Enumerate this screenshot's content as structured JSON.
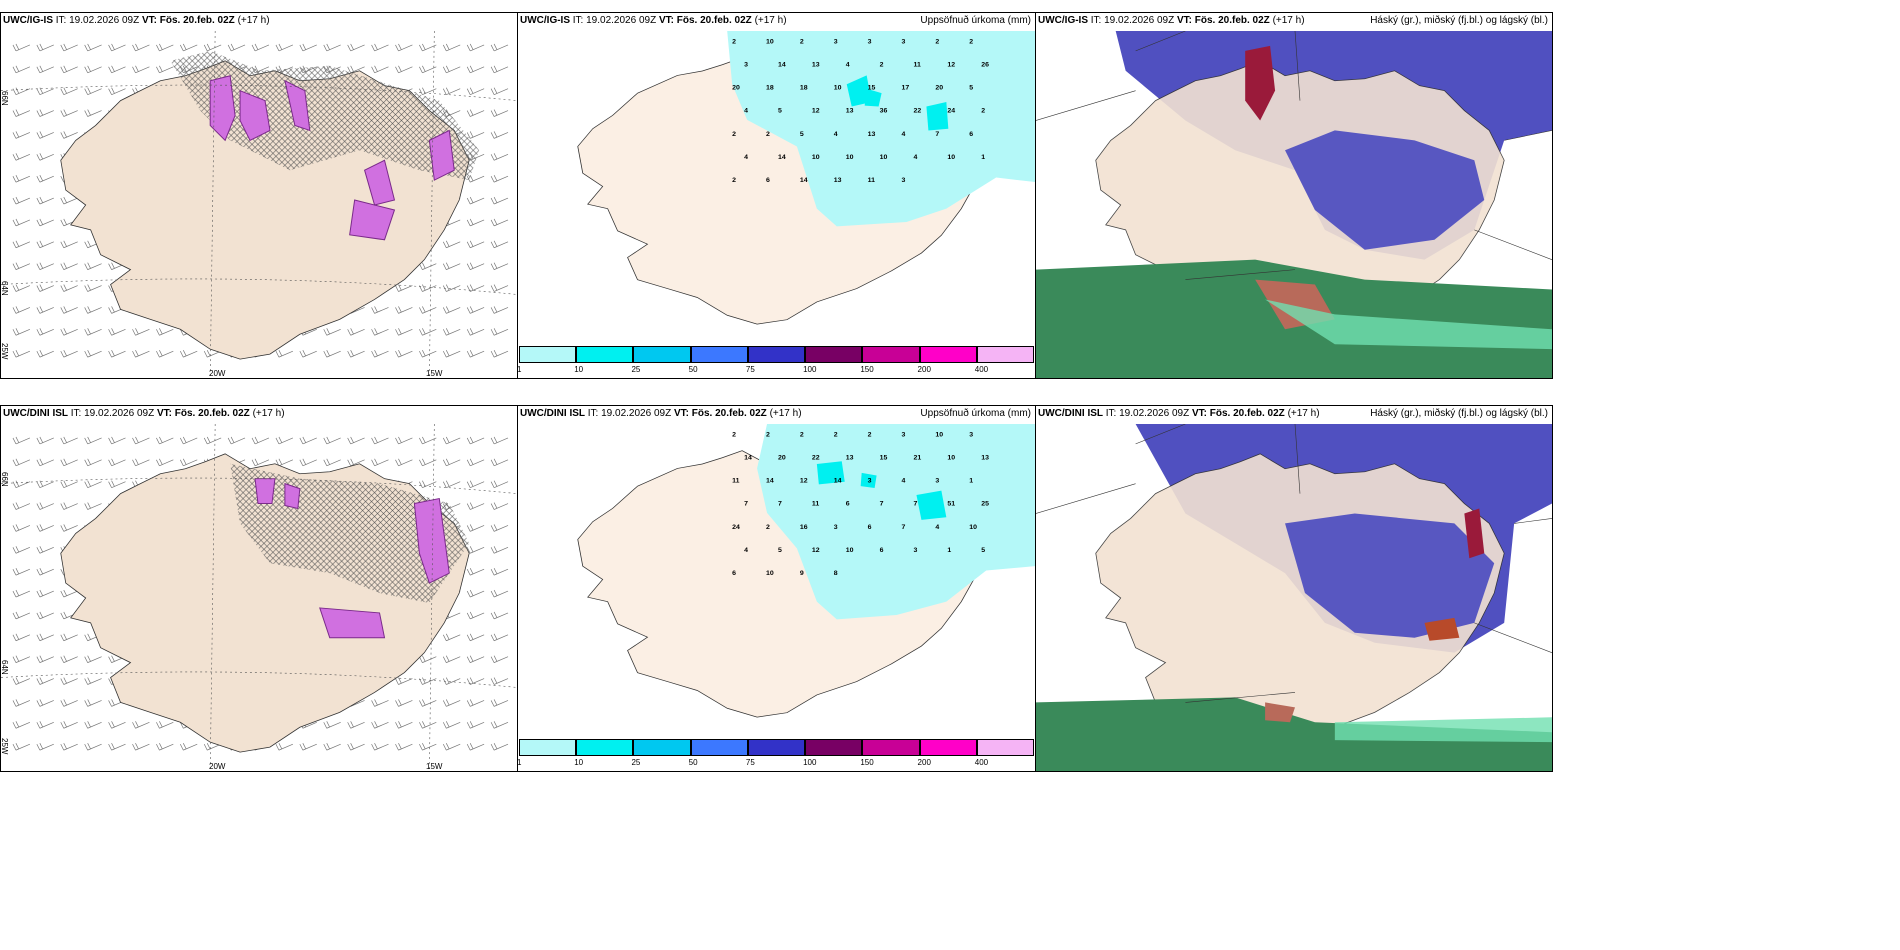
{
  "rows": [
    {
      "model": "UWC/IG-IS",
      "it_label": "IT:",
      "it_value": "19.02.2026 09Z",
      "vt_label": "VT:",
      "vt_value": "Fös. 20.feb. 02Z",
      "lead": "(+17 h)"
    },
    {
      "model": "UWC/DINI ISL",
      "it_label": "IT:",
      "it_value": "19.02.2026 09Z",
      "vt_label": "VT:",
      "vt_value": "Fös. 20.feb. 02Z",
      "lead": "(+17 h)"
    }
  ],
  "precip_title": "Uppsöfnuð úrkoma (mm)",
  "cloud_title": "Háský (gr.), miðský (fj.bl.) og lágský (bl.)",
  "axis_labels": {
    "lat66": "66N",
    "lat64": "64N",
    "lon25": "25W",
    "lon20": "20W",
    "lon15": "15W"
  },
  "precip_scale": {
    "labels": [
      "1",
      "10",
      "25",
      "50",
      "75",
      "100",
      "150",
      "200",
      "400"
    ],
    "colors": [
      "#b4f8f8",
      "#00f0f0",
      "#00c8f0",
      "#3c78ff",
      "#3232c8",
      "#780064",
      "#c80096",
      "#ff00c8",
      "#f5b4f5"
    ]
  },
  "precip_values": [
    [
      {
        "v": "2"
      },
      {
        "v": "10"
      },
      {
        "v": "2"
      },
      {
        "v": "3"
      },
      {
        "v": "3"
      },
      {
        "v": "3"
      },
      {
        "v": "2"
      },
      {
        "v": "2"
      },
      {
        "v": "3"
      },
      {
        "v": "14"
      },
      {
        "v": "13"
      },
      {
        "v": "4"
      },
      {
        "v": "2"
      },
      {
        "v": "11"
      },
      {
        "v": "12"
      },
      {
        "v": "26"
      },
      {
        "v": "20"
      },
      {
        "v": "18"
      },
      {
        "v": "18"
      },
      {
        "v": "10"
      },
      {
        "v": "15"
      },
      {
        "v": "17"
      },
      {
        "v": "20"
      },
      {
        "v": "5"
      },
      {
        "v": "4"
      },
      {
        "v": "5"
      },
      {
        "v": "12"
      },
      {
        "v": "13"
      },
      {
        "v": "36"
      },
      {
        "v": "22"
      },
      {
        "v": "24"
      },
      {
        "v": "2"
      },
      {
        "v": "2"
      },
      {
        "v": "2"
      },
      {
        "v": "5"
      },
      {
        "v": "4"
      },
      {
        "v": "13"
      },
      {
        "v": "4"
      },
      {
        "v": "7"
      },
      {
        "v": "6"
      },
      {
        "v": "4"
      },
      {
        "v": "14"
      },
      {
        "v": "10"
      },
      {
        "v": "10"
      },
      {
        "v": "10"
      },
      {
        "v": "4"
      },
      {
        "v": "10"
      },
      {
        "v": "1"
      },
      {
        "v": "2"
      },
      {
        "v": "6"
      },
      {
        "v": "14"
      },
      {
        "v": "13"
      },
      {
        "v": "11"
      },
      {
        "v": "3"
      }
    ],
    [
      {
        "v": "2"
      },
      {
        "v": "2"
      },
      {
        "v": "2"
      },
      {
        "v": "2"
      },
      {
        "v": "2"
      },
      {
        "v": "3"
      },
      {
        "v": "10"
      },
      {
        "v": "3"
      },
      {
        "v": "14"
      },
      {
        "v": "20"
      },
      {
        "v": "22"
      },
      {
        "v": "13"
      },
      {
        "v": "15"
      },
      {
        "v": "21"
      },
      {
        "v": "10"
      },
      {
        "v": "13"
      },
      {
        "v": "11"
      },
      {
        "v": "14"
      },
      {
        "v": "12"
      },
      {
        "v": "14"
      },
      {
        "v": "3"
      },
      {
        "v": "4"
      },
      {
        "v": "3"
      },
      {
        "v": "1"
      },
      {
        "v": "7"
      },
      {
        "v": "7"
      },
      {
        "v": "11"
      },
      {
        "v": "6"
      },
      {
        "v": "7"
      },
      {
        "v": "7"
      },
      {
        "v": "51"
      },
      {
        "v": "25"
      },
      {
        "v": "24"
      },
      {
        "v": "2"
      },
      {
        "v": "16"
      },
      {
        "v": "3"
      },
      {
        "v": "6"
      },
      {
        "v": "7"
      },
      {
        "v": "4"
      },
      {
        "v": "10"
      },
      {
        "v": "4"
      },
      {
        "v": "5"
      },
      {
        "v": "12"
      },
      {
        "v": "10"
      },
      {
        "v": "6"
      },
      {
        "v": "3"
      },
      {
        "v": "1"
      },
      {
        "v": "5"
      },
      {
        "v": "6"
      },
      {
        "v": "10"
      },
      {
        "v": "9"
      },
      {
        "v": "8"
      }
    ]
  ]
}
